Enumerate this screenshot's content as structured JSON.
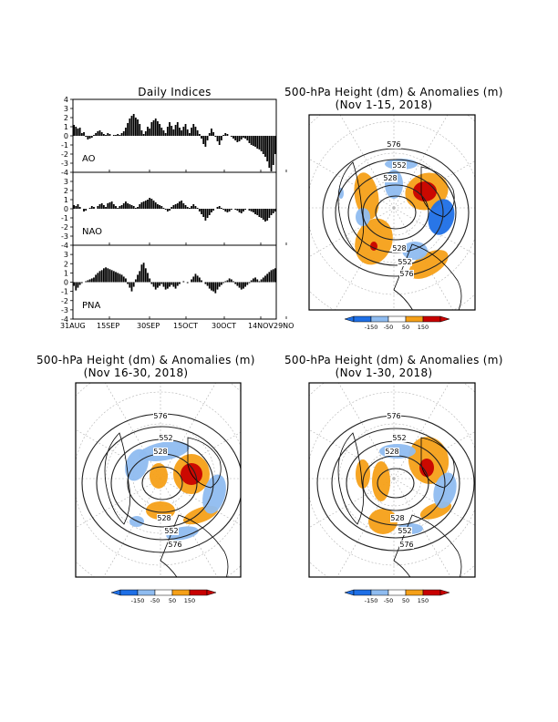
{
  "indices_panel": {
    "title": "Daily Indices",
    "x_ticks": [
      "31AUG",
      "15SEP",
      "30SEP",
      "15OCT",
      "30OCT",
      "14NOV",
      "29NO"
    ],
    "y_ticks": [
      "4",
      "3",
      "2",
      "1",
      "0",
      "-1",
      "-2",
      "-3",
      "-4"
    ]
  },
  "map_panels": [
    {
      "title": "500-hPa Height (dm) & Anomalies (m)",
      "period": "(Nov 1-15, 2018)",
      "contour_labels": [
        "576",
        "552",
        "528",
        "528",
        "552",
        "576"
      ]
    },
    {
      "title": "500-hPa Height (dm) & Anomalies (m)",
      "period": "(Nov 16-30, 2018)",
      "contour_labels": [
        "576",
        "552",
        "528",
        "528",
        "552",
        "576"
      ]
    },
    {
      "title": "500-hPa Height (dm) & Anomalies (m)",
      "period": "(Nov 1-30, 2018)",
      "contour_labels": [
        "576",
        "552",
        "528",
        "528",
        "552",
        "576"
      ]
    }
  ],
  "colorbar": {
    "labels": [
      "-150",
      "-50",
      "50",
      "150"
    ],
    "colors": {
      "strong_neg": "#1e6fe6",
      "neg": "#8fbcf0",
      "pos": "#f5a018",
      "strong_pos": "#c80000"
    }
  },
  "chart_data": [
    {
      "type": "bar",
      "title": "",
      "series": [
        {
          "name": "AO",
          "values": [
            1.2,
            1.0,
            0.8,
            0.9,
            0.3,
            0.4,
            -0.1,
            -0.4,
            -0.3,
            -0.2,
            0.1,
            0.3,
            0.5,
            0.6,
            0.4,
            0.2,
            0.1,
            0.3,
            0.2,
            0.0,
            0.1,
            0.1,
            0.2,
            0.1,
            0.3,
            0.5,
            0.9,
            1.4,
            1.9,
            2.2,
            2.4,
            2.0,
            1.8,
            1.3,
            0.6,
            0.2,
            0.5,
            1.0,
            0.8,
            1.5,
            1.7,
            1.9,
            1.6,
            1.3,
            0.9,
            0.6,
            0.3,
            1.0,
            1.5,
            1.1,
            0.7,
            1.2,
            1.5,
            0.9,
            0.6,
            1.0,
            1.3,
            0.7,
            0.3,
            0.9,
            1.3,
            1.0,
            0.6,
            0.2,
            -0.3,
            -0.9,
            -1.2,
            -0.5,
            0.3,
            0.8,
            0.4,
            -0.1,
            -0.6,
            -1.0,
            -0.5,
            0.1,
            0.3,
            0.2,
            0.0,
            -0.1,
            -0.3,
            -0.5,
            -0.7,
            -0.6,
            -0.4,
            -0.2,
            -0.3,
            -0.5,
            -0.8,
            -1.0,
            -1.1,
            -1.2,
            -1.4,
            -1.5,
            -1.7,
            -2.0,
            -2.3,
            -2.8,
            -3.5,
            -3.9,
            -3.2,
            -2.0
          ]
        }
      ],
      "ylim": [
        -4,
        4
      ]
    },
    {
      "type": "bar",
      "title": "",
      "series": [
        {
          "name": "NAO",
          "values": [
            0.4,
            0.3,
            0.5,
            0.2,
            0.0,
            -0.3,
            -0.2,
            0.0,
            0.1,
            0.3,
            0.2,
            0.0,
            0.3,
            0.5,
            0.6,
            0.4,
            0.2,
            0.6,
            0.7,
            0.8,
            0.5,
            0.3,
            0.1,
            0.3,
            0.4,
            0.6,
            0.8,
            0.6,
            0.5,
            0.4,
            0.3,
            0.1,
            0.2,
            0.5,
            0.7,
            0.8,
            0.9,
            1.0,
            1.2,
            1.1,
            0.9,
            0.7,
            0.5,
            0.4,
            0.3,
            0.1,
            -0.1,
            -0.3,
            -0.2,
            0.2,
            0.4,
            0.5,
            0.6,
            0.8,
            0.9,
            0.6,
            0.4,
            0.2,
            0.1,
            0.3,
            0.5,
            0.3,
            0.1,
            -0.3,
            -0.6,
            -0.9,
            -1.3,
            -1.0,
            -0.7,
            -0.4,
            -0.2,
            0.0,
            0.2,
            0.3,
            0.1,
            -0.1,
            -0.3,
            -0.4,
            -0.3,
            -0.1,
            0.0,
            -0.1,
            -0.2,
            -0.4,
            -0.5,
            -0.3,
            -0.1,
            0.0,
            -0.2,
            -0.3,
            -0.4,
            -0.6,
            -0.7,
            -0.9,
            -1.0,
            -1.2,
            -1.4,
            -1.3,
            -1.0,
            -0.7,
            -0.5,
            -0.3
          ]
        }
      ],
      "ylim": [
        -4,
        4
      ]
    },
    {
      "type": "bar",
      "title": "",
      "series": [
        {
          "name": "PNA",
          "values": [
            -0.4,
            -0.9,
            -0.6,
            -0.3,
            -0.1,
            0.0,
            0.1,
            0.2,
            0.3,
            0.4,
            0.5,
            0.8,
            1.0,
            1.2,
            1.3,
            1.5,
            1.6,
            1.5,
            1.4,
            1.3,
            1.2,
            1.1,
            1.0,
            0.9,
            0.8,
            0.6,
            0.4,
            -0.2,
            -0.6,
            -1.0,
            -0.5,
            0.3,
            0.8,
            1.2,
            1.9,
            2.1,
            1.5,
            1.0,
            0.4,
            -0.2,
            -0.5,
            -0.8,
            -0.6,
            -0.4,
            -0.2,
            -0.5,
            -0.8,
            -0.7,
            -0.5,
            -0.3,
            -0.5,
            -0.7,
            -0.4,
            -0.2,
            0.0,
            0.1,
            0.0,
            -0.1,
            0.0,
            0.3,
            0.6,
            0.9,
            0.7,
            0.5,
            0.2,
            0.0,
            -0.2,
            -0.4,
            -0.7,
            -0.9,
            -1.0,
            -1.2,
            -0.8,
            -0.5,
            -0.3,
            -0.1,
            0.1,
            0.2,
            0.4,
            0.3,
            0.1,
            -0.2,
            -0.4,
            -0.6,
            -0.8,
            -0.7,
            -0.5,
            -0.3,
            -0.1,
            0.2,
            0.4,
            0.5,
            0.3,
            0.1,
            0.3,
            0.5,
            0.7,
            0.9,
            1.1,
            1.3,
            1.4,
            1.5
          ]
        }
      ],
      "ylim": [
        -4,
        4
      ]
    }
  ]
}
